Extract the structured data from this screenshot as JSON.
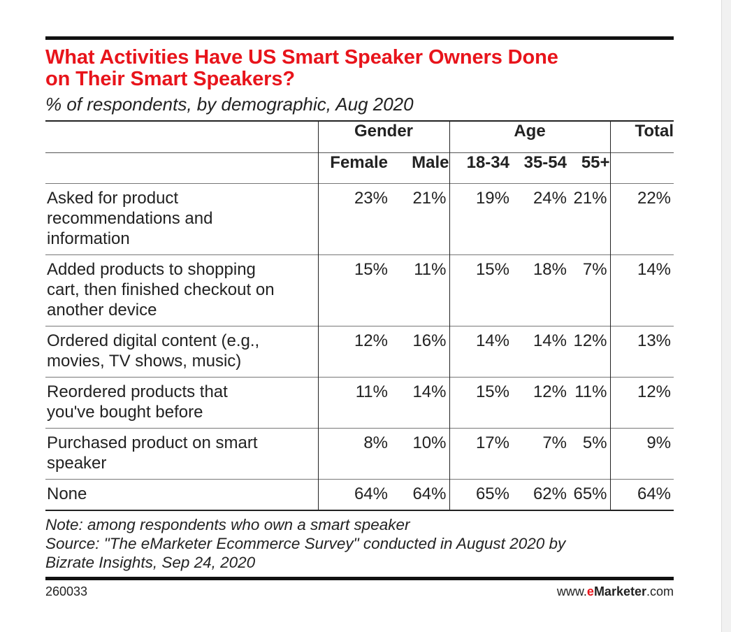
{
  "chart_data": {
    "type": "table",
    "title_line1": "What Activities Have US Smart Speaker Owners Done",
    "title_line2": "on Their Smart Speakers?",
    "subtitle": "% of respondents, by demographic, Aug 2020",
    "groups": [
      "Gender",
      "Age",
      "Total"
    ],
    "columns": [
      "Female",
      "Male",
      "18-34",
      "35-54",
      "55+"
    ],
    "rows": [
      {
        "label_lines": [
          "Asked for product",
          "recommendations and",
          "information"
        ],
        "values": [
          "23%",
          "21%",
          "19%",
          "24%",
          "21%",
          "22%"
        ]
      },
      {
        "label_lines": [
          "Added products to shopping",
          "cart, then finished checkout on",
          "another device"
        ],
        "values": [
          "15%",
          "11%",
          "15%",
          "18%",
          "7%",
          "14%"
        ]
      },
      {
        "label_lines": [
          "Ordered digital content (e.g.,",
          "movies, TV shows, music)"
        ],
        "values": [
          "12%",
          "16%",
          "14%",
          "14%",
          "12%",
          "13%"
        ]
      },
      {
        "label_lines": [
          "Reordered products that",
          "you've bought before"
        ],
        "values": [
          "11%",
          "14%",
          "15%",
          "12%",
          "11%",
          "12%"
        ]
      },
      {
        "label_lines": [
          "Purchased product on smart",
          "speaker"
        ],
        "values": [
          "8%",
          "10%",
          "17%",
          "7%",
          "5%",
          "9%"
        ]
      },
      {
        "label_lines": [
          "None"
        ],
        "values": [
          "64%",
          "64%",
          "65%",
          "62%",
          "65%",
          "64%"
        ]
      }
    ],
    "note": "Note: among respondents who own a smart speaker",
    "source_line1": "Source: \"The eMarketer Ecommerce Survey\" conducted in August 2020 by",
    "source_line2": "Bizrate Insights, Sep 24, 2020"
  },
  "footer": {
    "chart_id": "260033",
    "brand_prefix": "www.",
    "brand_e": "e",
    "brand_name": "Marketer",
    "brand_suffix": ".com"
  },
  "colors": {
    "title": "#e8141b",
    "text": "#222222",
    "rule": "#111111"
  }
}
